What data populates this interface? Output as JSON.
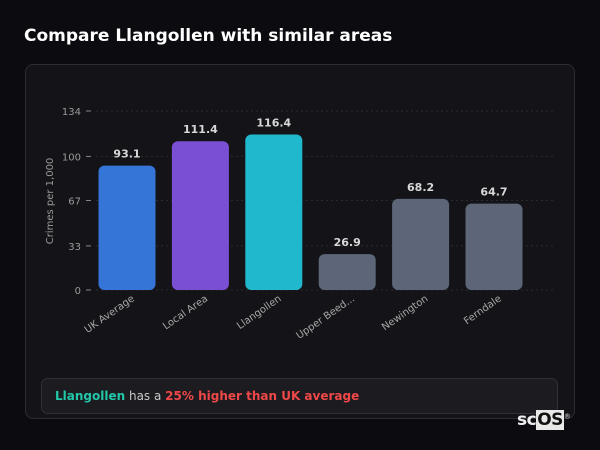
{
  "title": "Compare Llangollen with similar areas",
  "chart_data": {
    "type": "bar",
    "title": "",
    "xlabel": "",
    "ylabel": "Crimes per 1,000",
    "ylim": [
      0,
      134
    ],
    "yticks": [
      0,
      33,
      67,
      100,
      134
    ],
    "grid": true,
    "categories": [
      "UK Average",
      "Local Area",
      "Llangollen",
      "Upper Beed...",
      "Newington",
      "Ferndale"
    ],
    "values": [
      93.1,
      111.4,
      116.4,
      26.9,
      68.2,
      64.7
    ],
    "value_labels": [
      "93.1",
      "111.4",
      "116.4",
      "26.9",
      "68.2",
      "64.7"
    ],
    "colors": [
      "#3575d8",
      "#7b4fd4",
      "#20b8cc",
      "#5c6678",
      "#5c6678",
      "#5c6678"
    ]
  },
  "footer": {
    "area": "Llangollen",
    "middle": " has a ",
    "comparison": "25% higher than UK average"
  },
  "logo": {
    "text_a": "sc",
    "text_b": "OS",
    "mark": "®"
  }
}
